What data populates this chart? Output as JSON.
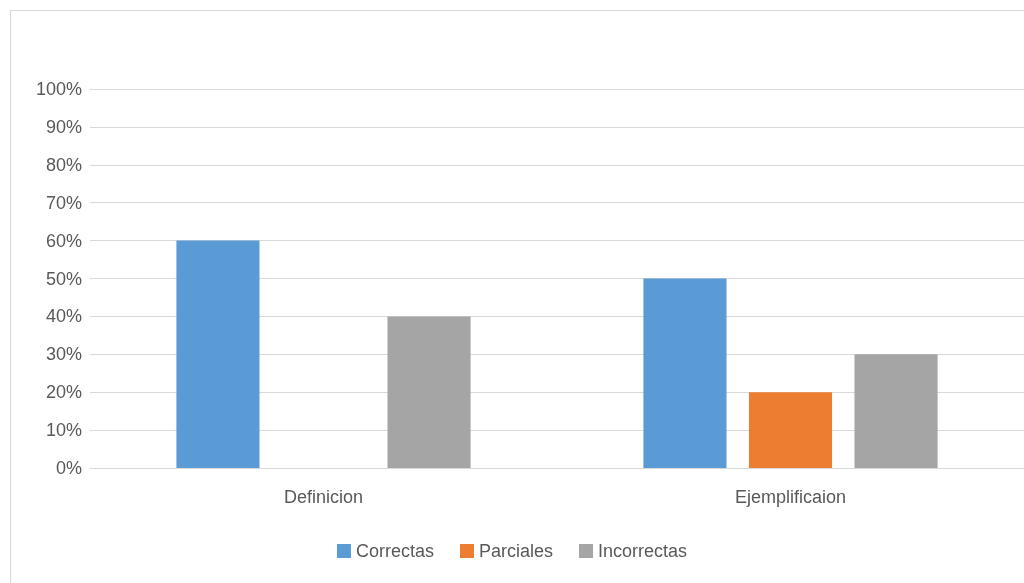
{
  "chart_data": {
    "type": "bar",
    "categories": [
      "Definicion",
      "Ejemplificaion"
    ],
    "series": [
      {
        "name": "Correctas",
        "color": "#5b9bd5",
        "values": [
          60,
          50
        ]
      },
      {
        "name": "Parciales",
        "color": "#ed7d31",
        "values": [
          0,
          20
        ]
      },
      {
        "name": "Incorrectas",
        "color": "#a5a5a5",
        "values": [
          40,
          30
        ]
      }
    ],
    "ylim": [
      0,
      100
    ],
    "yticks": [
      {
        "value": 0,
        "label": "0%"
      },
      {
        "value": 10,
        "label": "10%"
      },
      {
        "value": 20,
        "label": "20%"
      },
      {
        "value": 30,
        "label": "30%"
      },
      {
        "value": 40,
        "label": "40%"
      },
      {
        "value": 50,
        "label": "50%"
      },
      {
        "value": 60,
        "label": "60%"
      },
      {
        "value": 70,
        "label": "70%"
      },
      {
        "value": 80,
        "label": "80%"
      },
      {
        "value": 90,
        "label": "90%"
      },
      {
        "value": 100,
        "label": "100%"
      }
    ],
    "grid": "y",
    "legend": "bottom"
  }
}
